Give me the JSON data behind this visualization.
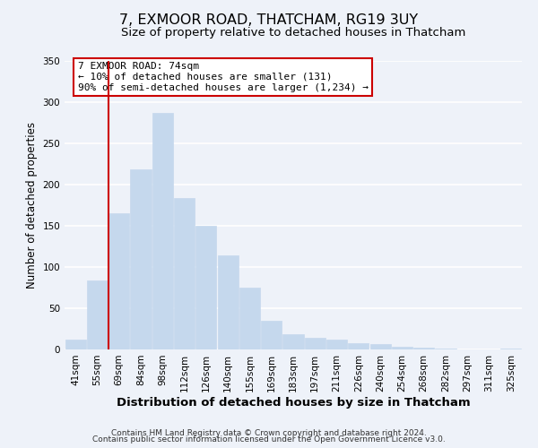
{
  "title": "7, EXMOOR ROAD, THATCHAM, RG19 3UY",
  "subtitle": "Size of property relative to detached houses in Thatcham",
  "xlabel": "Distribution of detached houses by size in Thatcham",
  "ylabel": "Number of detached properties",
  "bar_labels": [
    "41sqm",
    "55sqm",
    "69sqm",
    "84sqm",
    "98sqm",
    "112sqm",
    "126sqm",
    "140sqm",
    "155sqm",
    "169sqm",
    "183sqm",
    "197sqm",
    "211sqm",
    "226sqm",
    "240sqm",
    "254sqm",
    "268sqm",
    "282sqm",
    "297sqm",
    "311sqm",
    "325sqm"
  ],
  "bar_values": [
    12,
    84,
    165,
    218,
    287,
    183,
    150,
    114,
    75,
    35,
    18,
    14,
    12,
    8,
    7,
    3,
    2,
    1,
    0,
    0,
    1
  ],
  "bar_color": "#c5d8ed",
  "bar_edge_color": "#c5d8ed",
  "vline_color": "#cc0000",
  "annotation_text": "7 EXMOOR ROAD: 74sqm\n← 10% of detached houses are smaller (131)\n90% of semi-detached houses are larger (1,234) →",
  "annotation_box_edgecolor": "#cc0000",
  "annotation_box_facecolor": "#ffffff",
  "ylim": [
    0,
    350
  ],
  "yticks": [
    0,
    50,
    100,
    150,
    200,
    250,
    300,
    350
  ],
  "footer_line1": "Contains HM Land Registry data © Crown copyright and database right 2024.",
  "footer_line2": "Contains public sector information licensed under the Open Government Licence v3.0.",
  "background_color": "#eef2f9",
  "plot_background": "#eef2f9",
  "grid_color": "#ffffff",
  "title_fontsize": 11.5,
  "subtitle_fontsize": 9.5,
  "xlabel_fontsize": 9.5,
  "ylabel_fontsize": 8.5,
  "tick_fontsize": 7.5,
  "annotation_fontsize": 8,
  "footer_fontsize": 6.5
}
